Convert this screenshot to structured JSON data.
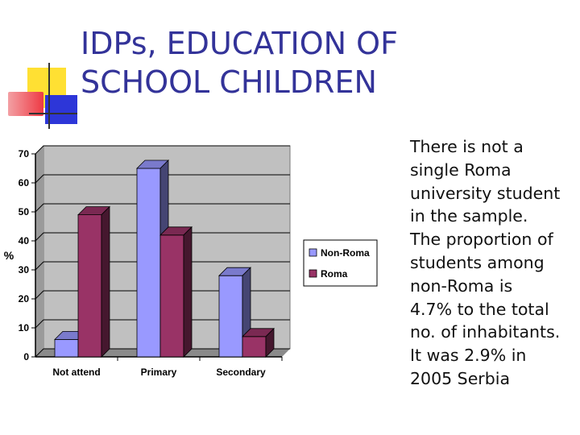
{
  "slide": {
    "title_line1": "IDPs, EDUCATION OF",
    "title_line2": "SCHOOL CHILDREN",
    "body_lines": [
      "There is not a",
      "single Roma",
      "university student",
      "in the sample.",
      "The proportion of",
      "students among",
      "non-Roma is",
      "4.7% to the total",
      "no. of inhabitants.",
      "It was 2.9% in",
      "2005 Serbia"
    ]
  },
  "chart_data": {
    "type": "bar",
    "style": "3d-clustered",
    "categories": [
      "Not attend",
      "Primary",
      "Secondary"
    ],
    "series": [
      {
        "name": "Non-Roma",
        "values": [
          6,
          65,
          28
        ],
        "color": "#9999ff"
      },
      {
        "name": "Roma",
        "values": [
          49,
          42,
          7
        ],
        "color": "#993366"
      }
    ],
    "title": "",
    "xlabel": "",
    "ylabel": "%",
    "ylim": [
      0,
      70
    ],
    "yticks": [
      0,
      10,
      20,
      30,
      40,
      50,
      60,
      70
    ],
    "grid": true,
    "legend_position": "right",
    "plot_background": "#c0c0c0"
  }
}
